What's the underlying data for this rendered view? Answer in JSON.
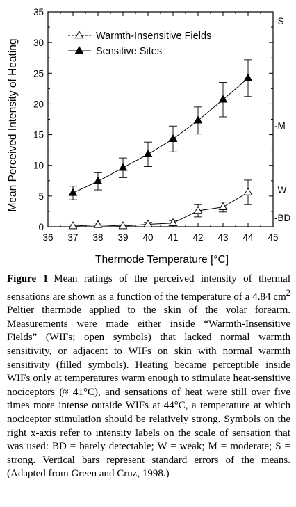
{
  "chart_data": {
    "type": "line",
    "xlabel": "Thermode Temperature [°C]",
    "ylabel": "Mean Perceived Intensity of Heating",
    "xlim": [
      36,
      45
    ],
    "ylim": [
      0,
      35
    ],
    "x_ticks": [
      "36",
      "37",
      "38",
      "39",
      "40",
      "41",
      "42",
      "43",
      "44",
      "45"
    ],
    "y_ticks": [
      "0",
      "5",
      "10",
      "15",
      "20",
      "25",
      "30",
      "35"
    ],
    "x": [
      37,
      38,
      39,
      40,
      41,
      42,
      43,
      44
    ],
    "series": [
      {
        "name": "Warmth-Insensitive Fields",
        "marker": "open-triangle",
        "values": [
          0.1,
          0.3,
          0.1,
          0.4,
          0.6,
          2.6,
          3.2,
          5.6
        ],
        "errors": [
          0.2,
          0.3,
          0.2,
          0.3,
          0.4,
          1.0,
          0.8,
          2.0
        ]
      },
      {
        "name": "Sensitive Sites",
        "marker": "filled-triangle",
        "values": [
          5.5,
          7.4,
          9.6,
          11.8,
          14.3,
          17.3,
          20.7,
          24.2
        ],
        "errors": [
          1.1,
          1.4,
          1.6,
          2.0,
          2.1,
          2.2,
          2.8,
          3.0
        ]
      }
    ],
    "right_axis_labels": [
      {
        "label": "-S",
        "value": 33.5
      },
      {
        "label": "-M",
        "value": 16.5
      },
      {
        "label": "-W",
        "value": 6.0
      },
      {
        "label": "-BD",
        "value": 1.5
      }
    ],
    "legend_position": "top-left",
    "grid": false
  },
  "caption": {
    "label": "Figure 1",
    "text_before_sup": "Mean ratings of the perceived intensity of thermal sensations are shown as a function of the temperature of a 4.84 cm",
    "sup": "2",
    "text_after_sup": " Peltier thermode applied to the skin of the volar forearm. Measurements were made either inside “Warmth-Insensitive Fields” (WIFs; open symbols) that lacked normal warmth sensitivity, or adjacent to WIFs on skin with normal warmth sensitivity (filled symbols). Heating became perceptible inside WIFs only at temperatures warm enough to stimulate heat-sensitive nociceptors (≈ 41°C), and sensations of heat were still over five times more intense outside WIFs at 44°C, a temperature at which nociceptor stimulation should be relatively strong. Symbols on the right x-axis refer to intensity labels on the scale of sensation that was used: BD = barely detectable; W = weak; M = moderate; S = strong. Vertical bars represent standard errors of the means. (Adapted from Green and Cruz, 1998.)"
  }
}
